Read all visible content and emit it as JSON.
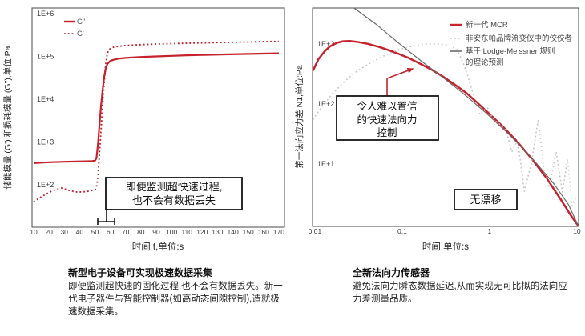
{
  "colors": {
    "brand_red": "#c5222c",
    "competitor_gray": "#c6c6c6",
    "theory_gray": "#6a6a6a",
    "axis_gray": "#4a4a4a",
    "annotation_black": "#141414"
  },
  "left_chart": {
    "x_axis_label": "时间 t,单位:s",
    "y_axis_label": "储能模量 (G') 和损耗模量 (G\"),单位:Pa",
    "annotation": {
      "line1": "即便监测超快速过程,",
      "line2": "也不会有数据丢失"
    }
  },
  "right_chart": {
    "x_axis_label": "时间,单位:s",
    "y_axis_label": "第一法向应力差 N1,单位:Pa",
    "legend_rows": {
      "row1": "新一代 MCR",
      "row2": "非安东帕品牌流变仪中的佼佼者",
      "row3a": "基于 Lodge-Meissner 规则",
      "row3b": "的理论预测"
    },
    "annotation": {
      "line1": "令人难以置信",
      "line2": "的快速法向力",
      "line3": "控制"
    },
    "no_drift_label": "无漂移"
  },
  "captions": {
    "left": {
      "title": "新型电子设备可实现极速数据采集",
      "body": "即便监测超快速的固化过程,也不会有数据丢失。新一代电子器件与智能控制器(如高动态间隙控制),造就极速数据采集。"
    },
    "right": {
      "title": "全新法向力传感器",
      "body": "避免法向力瞬态数据延迟,从而实现无可比拟的法向应力差测量品质。"
    }
  },
  "chart_data": [
    {
      "type": "line",
      "title": "新型电子设备可实现极速数据采集",
      "x_scale": "linear",
      "y_scale": "log",
      "xlabel": "时间 t,单位:s",
      "ylabel": "储能模量 (G') 和损耗模量 (G\"),单位:Pa",
      "xlim": [
        8.95,
        173.7
      ],
      "ylim": [
        10.2,
        1350000
      ],
      "grid": false,
      "legend_position": "top-left-inside",
      "xticks": [
        [
          10,
          "10"
        ],
        [
          20,
          "20"
        ],
        [
          30,
          "30"
        ],
        [
          40,
          "40"
        ],
        [
          50,
          "50"
        ],
        [
          60,
          "60"
        ],
        [
          70,
          "70"
        ],
        [
          80,
          "80"
        ],
        [
          90,
          "90"
        ],
        [
          100,
          "100"
        ],
        [
          110,
          "110"
        ],
        [
          120,
          "120"
        ],
        [
          130,
          "130"
        ],
        [
          140,
          "140"
        ],
        [
          150,
          "150"
        ],
        [
          160,
          "160"
        ],
        [
          170,
          "170"
        ]
      ],
      "yticks": [
        [
          1000000,
          "1E+6"
        ],
        [
          100000,
          "1E+5"
        ],
        [
          10000,
          "1E+4"
        ],
        [
          1000,
          "1E+3"
        ],
        [
          100,
          "1E+2"
        ]
      ],
      "series": [
        {
          "name": "G\"",
          "style": "solid",
          "color": "#c5222c",
          "points": [
            [
              10,
              320
            ],
            [
              16,
              330
            ],
            [
              22,
              338
            ],
            [
              30,
              345
            ],
            [
              38,
              350
            ],
            [
              44,
              354
            ],
            [
              48,
              358
            ],
            [
              50,
              365
            ],
            [
              51,
              420
            ],
            [
              52,
              900
            ],
            [
              53,
              2600
            ],
            [
              54,
              7000
            ],
            [
              55,
              16000
            ],
            [
              56,
              33000
            ],
            [
              57,
              52000
            ],
            [
              58,
              65000
            ],
            [
              59,
              72000
            ],
            [
              60,
              78000
            ],
            [
              62,
              83000
            ],
            [
              65,
              88000
            ],
            [
              70,
              92000
            ],
            [
              80,
              97000
            ],
            [
              90,
              100000
            ],
            [
              100,
              103000
            ],
            [
              110,
              106000
            ],
            [
              120,
              108000
            ],
            [
              135,
              111000
            ],
            [
              150,
              114000
            ],
            [
              160,
              116000
            ],
            [
              170,
              118000
            ]
          ]
        },
        {
          "name": "G'",
          "style": "dotted",
          "color": "#c5222c",
          "points": [
            [
              10,
              40
            ],
            [
              14,
              50
            ],
            [
              18,
              60
            ],
            [
              22,
              72
            ],
            [
              26,
              80
            ],
            [
              28,
              84
            ],
            [
              31,
              78
            ],
            [
              34,
              72
            ],
            [
              38,
              68
            ],
            [
              42,
              68
            ],
            [
              46,
              71
            ],
            [
              50,
              76
            ],
            [
              51,
              85
            ],
            [
              52,
              160
            ],
            [
              53,
              550
            ],
            [
              54,
              1900
            ],
            [
              55,
              7000
            ],
            [
              56,
              24000
            ],
            [
              57,
              65000
            ],
            [
              58,
              115000
            ],
            [
              59,
              140000
            ],
            [
              60,
              152000
            ],
            [
              62,
              163000
            ],
            [
              65,
              171000
            ],
            [
              70,
              179000
            ],
            [
              80,
              188000
            ],
            [
              90,
              194000
            ],
            [
              100,
              199000
            ],
            [
              110,
              203000
            ],
            [
              120,
              207000
            ],
            [
              135,
              212000
            ],
            [
              150,
              217000
            ],
            [
              160,
              221000
            ],
            [
              170,
              224000
            ]
          ]
        }
      ],
      "annotations": [
        "即便监测超快速过程,也不会有数据丢失"
      ]
    },
    {
      "type": "line",
      "title": "全新法向力传感器",
      "x_scale": "log",
      "y_scale": "log",
      "xlabel": "时间,单位:s",
      "ylabel": "第一法向应力差 N1,单位:Pa",
      "xlim": [
        0.0094,
        10.45
      ],
      "ylim": [
        0.912,
        3981
      ],
      "grid": false,
      "legend_position": "top-right-inside",
      "xticks": [
        [
          0.01,
          "0.01"
        ],
        [
          0.1,
          "0.1"
        ],
        [
          1,
          "1"
        ],
        [
          10,
          "10"
        ]
      ],
      "yticks": [
        [
          1000,
          "1E+3"
        ],
        [
          100,
          "1E+2"
        ],
        [
          10,
          "1E+1"
        ]
      ],
      "series": [
        {
          "name": "新一代 MCR",
          "style": "solid",
          "color": "#c5222c",
          "points": [
            [
              0.0095,
              360
            ],
            [
              0.011,
              560
            ],
            [
              0.013,
              760
            ],
            [
              0.015,
              920
            ],
            [
              0.018,
              1050
            ],
            [
              0.021,
              1110
            ],
            [
              0.025,
              1120
            ],
            [
              0.03,
              1090
            ],
            [
              0.04,
              1010
            ],
            [
              0.055,
              890
            ],
            [
              0.07,
              790
            ],
            [
              0.09,
              690
            ],
            [
              0.12,
              580
            ],
            [
              0.16,
              470
            ],
            [
              0.22,
              370
            ],
            [
              0.3,
              280
            ],
            [
              0.4,
              210
            ],
            [
              0.55,
              150
            ],
            [
              0.75,
              100
            ],
            [
              1,
              68
            ],
            [
              1.4,
              43
            ],
            [
              2,
              25
            ],
            [
              3,
              12.5
            ],
            [
              4.5,
              5.8
            ],
            [
              6.5,
              2.6
            ],
            [
              8.5,
              1.4
            ],
            [
              10.4,
              0.92
            ]
          ]
        },
        {
          "name": "非安东帕品牌流变仪中的佼佼者",
          "style": "dotted",
          "color": "#c6c6c6",
          "points": [
            [
              0.0095,
              55
            ],
            [
              0.012,
              90
            ],
            [
              0.016,
              150
            ],
            [
              0.022,
              240
            ],
            [
              0.03,
              350
            ],
            [
              0.045,
              500
            ],
            [
              0.065,
              660
            ],
            [
              0.09,
              800
            ],
            [
              0.13,
              920
            ],
            [
              0.18,
              990
            ],
            [
              0.25,
              1010
            ],
            [
              0.33,
              960
            ],
            [
              0.42,
              820
            ],
            [
              0.5,
              480
            ],
            [
              0.56,
              300
            ],
            [
              0.63,
              170
            ],
            [
              0.7,
              100
            ],
            [
              0.78,
              66
            ],
            [
              0.88,
              80
            ],
            [
              0.95,
              86
            ],
            [
              1.1,
              56
            ],
            [
              1.3,
              46
            ],
            [
              1.55,
              36
            ],
            [
              1.8,
              16
            ],
            [
              2.1,
              25
            ],
            [
              2.5,
              3.5
            ],
            [
              3,
              10
            ],
            [
              3.6,
              55
            ],
            [
              4.2,
              8
            ],
            [
              4.8,
              4
            ],
            [
              5.8,
              16
            ],
            [
              6.8,
              3.4
            ],
            [
              7.8,
              12
            ],
            [
              8.8,
              2
            ],
            [
              9.6,
              2.7
            ]
          ]
        },
        {
          "name": "基于 Lodge-Meissner 规则的理论预测",
          "style": "solid",
          "color": "#6a6a6a",
          "points": [
            [
              0.028,
              3980
            ],
            [
              0.05,
              2150
            ],
            [
              0.09,
              1050
            ],
            [
              0.16,
              540
            ],
            [
              0.28,
              290
            ],
            [
              0.5,
              150
            ],
            [
              0.9,
              72
            ],
            [
              1.6,
              33
            ],
            [
              3,
              13
            ],
            [
              5.5,
              4.6
            ],
            [
              8,
              2.1
            ],
            [
              10.4,
              0.92
            ]
          ]
        }
      ],
      "annotations": [
        "令人难以置信的快速法向力控制",
        "无漂移"
      ]
    }
  ]
}
